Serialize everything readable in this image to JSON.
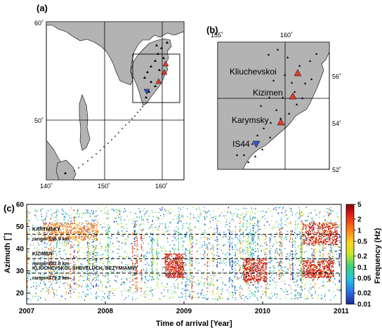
{
  "panels": {
    "a": {
      "label": "(a)",
      "lat_ticks": [
        "60˚",
        "50˚"
      ],
      "lon_ticks": [
        "140˚",
        "150˚",
        "160˚"
      ]
    },
    "b": {
      "label": "(b)",
      "lon_ticks": [
        "155˚",
        "160˚"
      ],
      "lat_ticks": [
        "56˚",
        "54˚",
        "52˚"
      ],
      "volcanoes": [
        "Kliuchevskoi",
        "Kizimen",
        "Karymsky"
      ],
      "station": "IS44"
    },
    "c": {
      "label": "(c)"
    }
  },
  "colors": {
    "land": "#b3b3b3",
    "volcano": "#e23b2a",
    "station": "#3355cc",
    "dashed": "#000000"
  },
  "chart_data": {
    "type": "scatter",
    "title": "",
    "xlabel": "Time of arrival [Year]",
    "ylabel": "Azimuth [˚]",
    "xlim": [
      2007,
      2011
    ],
    "ylim": [
      15,
      60
    ],
    "x_ticks": [
      "2007",
      "2008",
      "2009",
      "2010",
      "2011"
    ],
    "y_ticks": [
      20,
      30,
      40,
      50,
      60
    ],
    "colorbar": {
      "label": "Frequency (Hz)",
      "scale": "log",
      "range": [
        0.01,
        5
      ],
      "ticks": [
        "5",
        "2",
        "1",
        "0.5",
        "0.2",
        "0.1",
        "0.05",
        "0.02",
        "0.01"
      ]
    },
    "reference_lines": [
      {
        "azimuth": 46.5,
        "name": "KARYMSKY",
        "range": "range=155.9 km"
      },
      {
        "azimuth": 35.5,
        "name": "KIZIMEN",
        "range": "range=282.8 km"
      },
      {
        "azimuth": 29,
        "name": "KLIUCHEVSKOI, SHEVELUCH, BEZYMIANNY",
        "range": "range=379.2 km"
      }
    ],
    "dense_clusters": [
      {
        "x": [
          2008.75,
          2009.0
        ],
        "azimuth": [
          27,
          38
        ],
        "frequency_hz": 2
      },
      {
        "x": [
          2009.75,
          2010.05
        ],
        "azimuth": [
          25,
          36
        ],
        "frequency_hz": 2
      },
      {
        "x": [
          2010.5,
          2010.9
        ],
        "azimuth": [
          27,
          35
        ],
        "frequency_hz": 2
      },
      {
        "x": [
          2007.2,
          2007.9
        ],
        "azimuth": [
          44,
          52
        ],
        "frequency_hz": 0.8
      },
      {
        "x": [
          2010.5,
          2010.95
        ],
        "azimuth": [
          42,
          52
        ],
        "frequency_hz": 2
      }
    ]
  }
}
